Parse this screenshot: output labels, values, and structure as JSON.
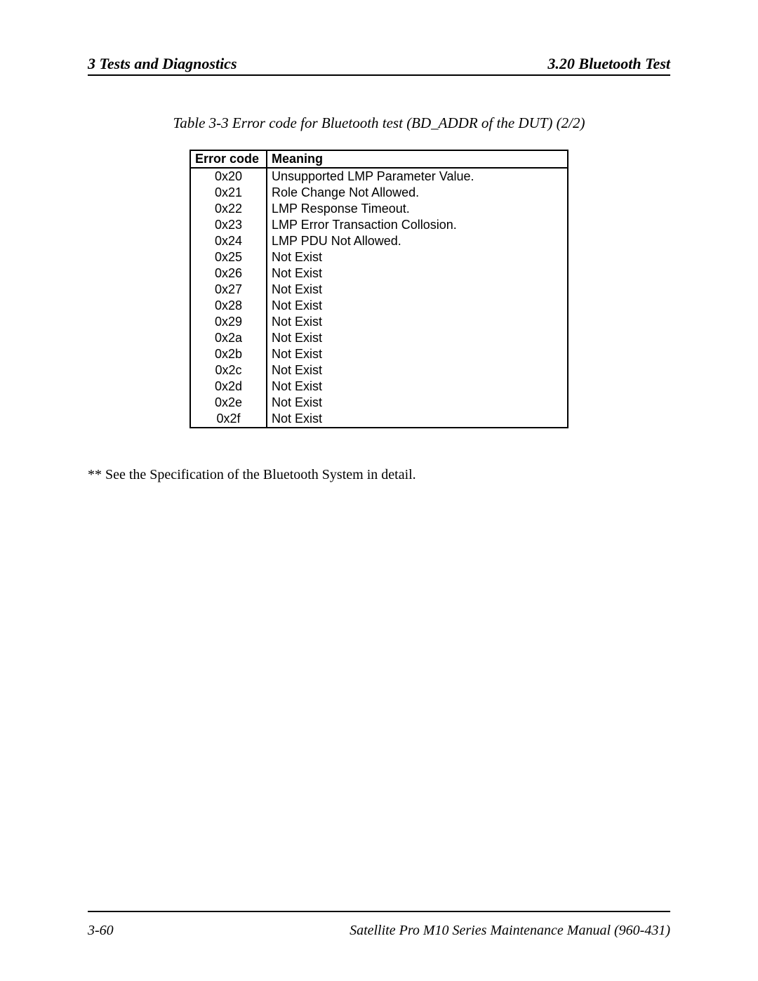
{
  "header": {
    "left": "3   Tests and Diagnostics",
    "right": "3.20  Bluetooth Test"
  },
  "table": {
    "caption": "Table 3-3 Error code for Bluetooth test (BD_ADDR of the DUT)  (2/2)",
    "columns": [
      "Error code",
      "Meaning"
    ],
    "rows": [
      [
        "0x20",
        "Unsupported LMP Parameter Value."
      ],
      [
        "0x21",
        "Role Change Not Allowed."
      ],
      [
        "0x22",
        "LMP Response Timeout."
      ],
      [
        "0x23",
        "LMP Error Transaction Collosion."
      ],
      [
        "0x24",
        "LMP PDU Not Allowed."
      ],
      [
        "0x25",
        "Not Exist"
      ],
      [
        "0x26",
        "Not Exist"
      ],
      [
        "0x27",
        "Not Exist"
      ],
      [
        "0x28",
        "Not Exist"
      ],
      [
        "0x29",
        "Not Exist"
      ],
      [
        "0x2a",
        "Not Exist"
      ],
      [
        "0x2b",
        "Not Exist"
      ],
      [
        "0x2c",
        "Not Exist"
      ],
      [
        "0x2d",
        "Not Exist"
      ],
      [
        "0x2e",
        "Not Exist"
      ],
      [
        "0x2f",
        "Not Exist"
      ]
    ]
  },
  "note": "** See the Specification of the Bluetooth System in detail.",
  "footer": {
    "left": "3-60",
    "right": "Satellite Pro M10 Series Maintenance Manual (960-431)"
  }
}
